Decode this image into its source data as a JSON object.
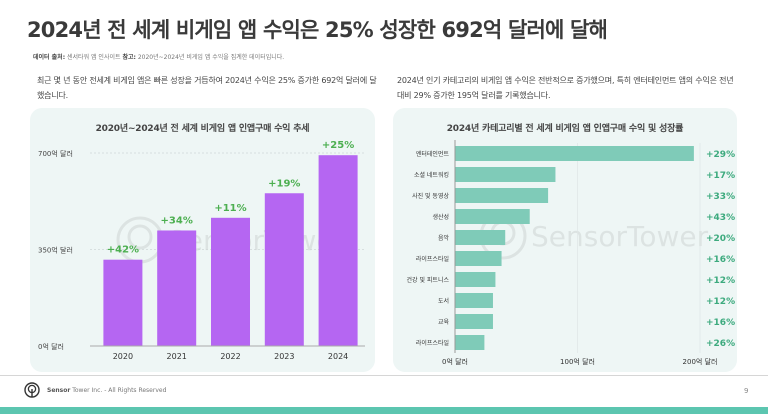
{
  "header": {
    "title": "2024년 전 세계 비게임 앱 수익은 25% 성장한 692억 달러에 달해",
    "source_label": "데이터 출처:",
    "source_value": "센서타워 앱 인사이트",
    "note_label": "참고:",
    "note_value": "2020년~2024년 비게임 앱 수익을 집계한 데이터입니다."
  },
  "descriptions": {
    "left": "최근 몇 년 동안 전세계 비게임 앱은 빠른 성장을 거듭하여 2024년 수익은 25% 증가한 692억 달러에 달했습니다.",
    "right": "2024년 인기 카테고리의 비게임 앱 수익은 전반적으로 증가했으며, 특히 엔터테인먼트 앱의 수익은 전년 대비 29% 증가한 195억 달러를 기록했습니다."
  },
  "colors": {
    "purple_bar": "#b566f2",
    "teal_bar": "#7fcbb8",
    "growth_green_left": "#4caf50",
    "growth_green_right": "#3daa7e",
    "brand_teal": "#5cc6b0"
  },
  "chart_data": [
    {
      "type": "bar",
      "title": "2020년~2024년 전 세계 비게임 앱 인앱구매 수익 추세",
      "categories": [
        "2020",
        "2021",
        "2022",
        "2023",
        "2024"
      ],
      "values": [
        313,
        419,
        465,
        554,
        692
      ],
      "unit": "억 달러",
      "growth_labels": [
        "+42%",
        "+34%",
        "+11%",
        "+19%",
        "+25%"
      ],
      "ylim": [
        0,
        700
      ],
      "yticks": [
        0,
        350,
        700
      ],
      "ytick_labels": [
        "0억 달러",
        "350억 달러",
        "700억 달러"
      ],
      "grid": true,
      "orientation": "vertical",
      "xlabel": "",
      "ylabel": ""
    },
    {
      "type": "bar",
      "title": "2024년 카테고리별 전 세계 비게임 앱 인앱구매 수익 및 성장률",
      "categories": [
        "엔터테인먼트",
        "소셜 네트워킹",
        "사진 및 동영상",
        "생산성",
        "음악",
        "라이프스타일",
        "건강 및 피트니스",
        "도서",
        "교육",
        "라이프스타일"
      ],
      "values": [
        195,
        82,
        76,
        61,
        41,
        38,
        33,
        31,
        31,
        24
      ],
      "unit": "억 달러",
      "growth_labels": [
        "+29%",
        "+17%",
        "+33%",
        "+43%",
        "+20%",
        "+16%",
        "+12%",
        "+12%",
        "+16%",
        "+26%"
      ],
      "xlim": [
        0,
        200
      ],
      "xticks": [
        0,
        100,
        200
      ],
      "xtick_labels": [
        "0억 달러",
        "100억 달러",
        "200억 달러"
      ],
      "grid": true,
      "orientation": "horizontal",
      "xlabel": "",
      "ylabel": ""
    }
  ],
  "watermark": "SensorTower",
  "footer": {
    "brand_bold": "Sensor",
    "brand_rest": " Tower Inc. - All Rights Reserved",
    "page_number": "9"
  }
}
